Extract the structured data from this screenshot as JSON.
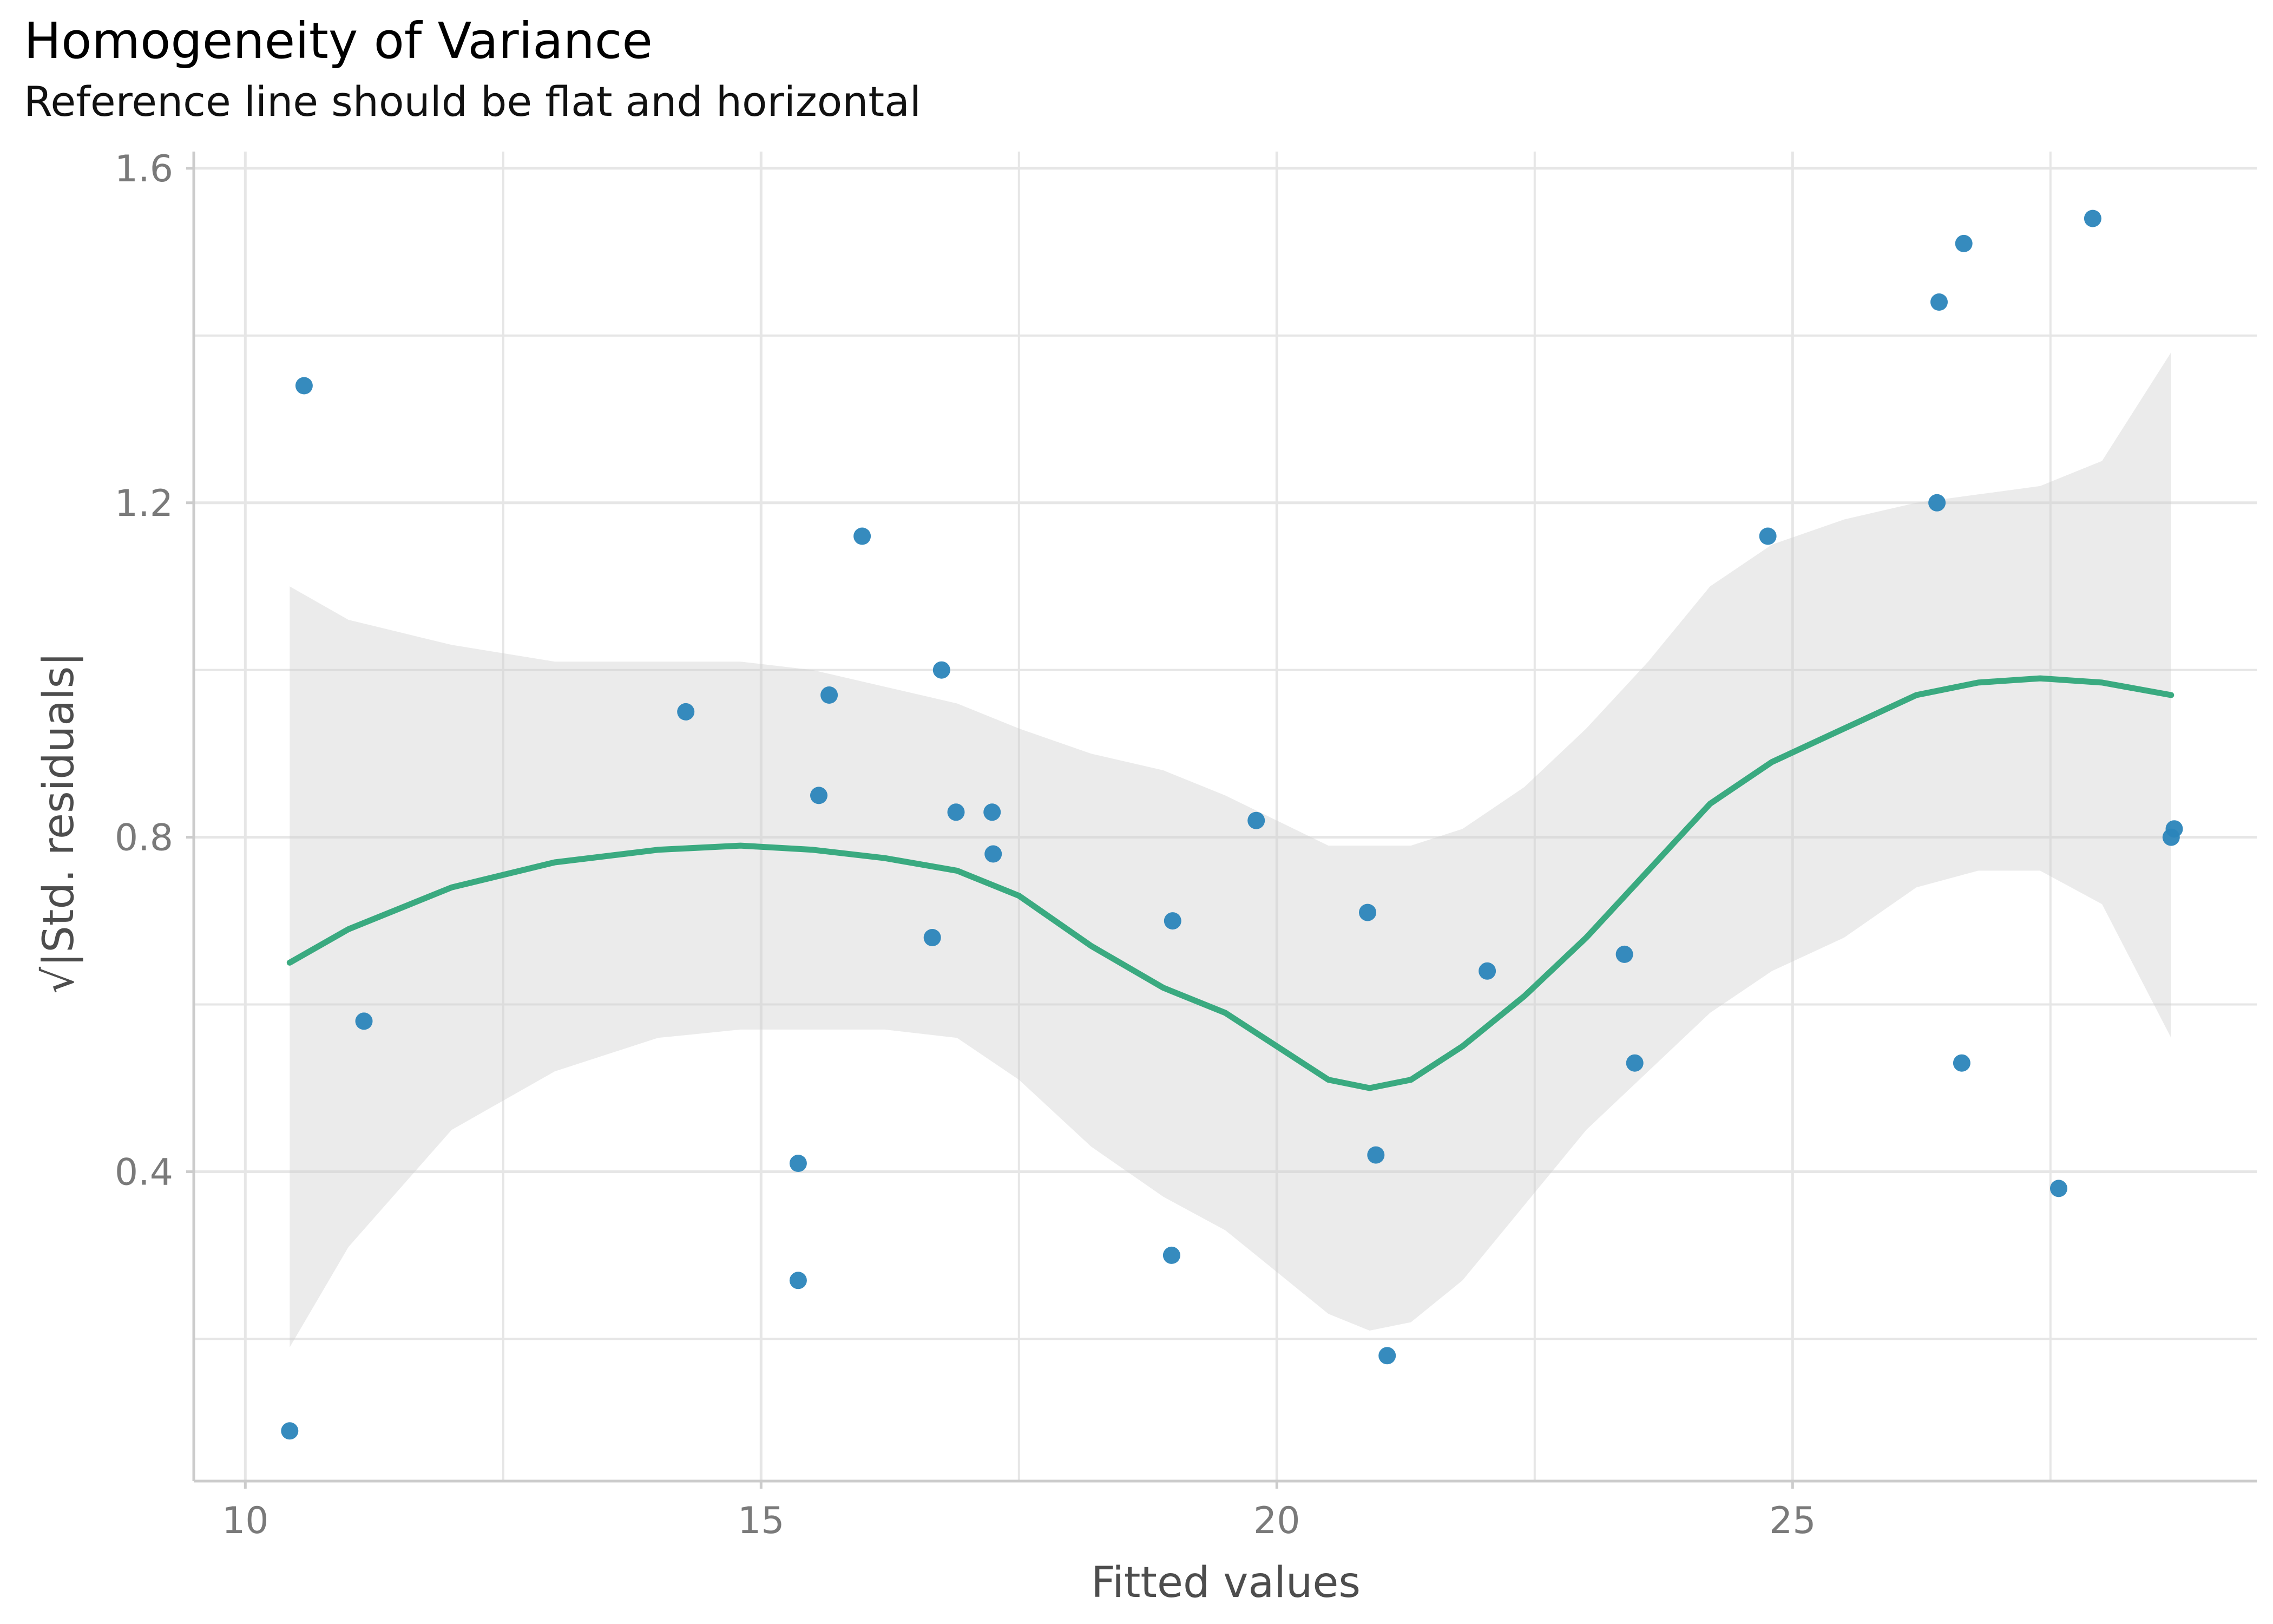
{
  "chart_data": {
    "type": "scatter",
    "title": "Homogeneity of Variance",
    "subtitle": "Reference line should be flat and horizontal",
    "xlabel": "Fitted values",
    "ylabel": "√|Std. residuals|",
    "xlim": [
      9.5,
      29.5
    ],
    "ylim": [
      0.03,
      1.62
    ],
    "x_ticks": [
      10,
      15,
      20,
      25
    ],
    "x_minor": [
      12.5,
      17.5,
      22.5,
      27.5
    ],
    "y_ticks": [
      0.4,
      0.8,
      1.2,
      1.6
    ],
    "y_tick_labels": [
      "0.4",
      "0.8",
      "1.2",
      "1.6"
    ],
    "y_minor": [
      0.2,
      0.6,
      1.0,
      1.4
    ],
    "grid": true,
    "colors": {
      "points": "#2b85ba",
      "smooth": "#3aaa80",
      "ribbon": "#e5e5e5",
      "grid": "#e6e6e6",
      "axis": "#cccccc"
    },
    "points": {
      "x": [
        10.43,
        10.57,
        11.15,
        14.27,
        15.36,
        15.36,
        15.56,
        15.66,
        15.98,
        16.66,
        16.75,
        16.89,
        17.24,
        17.25,
        18.98,
        18.99,
        19.8,
        20.88,
        20.96,
        21.07,
        22.04,
        23.37,
        23.47,
        24.76,
        26.4,
        26.42,
        26.64,
        26.66,
        27.58,
        27.91,
        28.67,
        28.7
      ],
      "y": [
        0.09,
        1.34,
        0.58,
        0.95,
        0.27,
        0.41,
        0.85,
        0.97,
        1.16,
        0.68,
        1.0,
        0.83,
        0.83,
        0.78,
        0.3,
        0.7,
        0.82,
        0.71,
        0.42,
        0.18,
        0.64,
        0.66,
        0.53,
        1.16,
        1.2,
        1.44,
        0.53,
        1.51,
        0.38,
        1.54,
        0.8,
        0.81
      ]
    },
    "smooth": {
      "x": [
        10.43,
        11.0,
        12.0,
        13.0,
        14.0,
        14.8,
        15.5,
        16.2,
        16.9,
        17.5,
        18.2,
        18.9,
        19.5,
        20.0,
        20.5,
        20.9,
        21.3,
        21.8,
        22.4,
        23.0,
        23.6,
        24.2,
        24.8,
        25.5,
        26.2,
        26.8,
        27.4,
        28.0,
        28.67
      ],
      "y": [
        0.65,
        0.69,
        0.74,
        0.77,
        0.785,
        0.79,
        0.785,
        0.775,
        0.76,
        0.73,
        0.67,
        0.62,
        0.59,
        0.55,
        0.51,
        0.5,
        0.51,
        0.55,
        0.61,
        0.68,
        0.76,
        0.84,
        0.89,
        0.93,
        0.97,
        0.985,
        0.99,
        0.985,
        0.97
      ]
    },
    "ribbon_upper": [
      1.1,
      1.06,
      1.03,
      1.01,
      1.01,
      1.01,
      1.0,
      0.98,
      0.96,
      0.93,
      0.9,
      0.88,
      0.85,
      0.82,
      0.79,
      0.79,
      0.79,
      0.81,
      0.86,
      0.93,
      1.01,
      1.1,
      1.15,
      1.18,
      1.2,
      1.21,
      1.22,
      1.25,
      1.38
    ],
    "ribbon_lower": [
      0.19,
      0.31,
      0.45,
      0.52,
      0.56,
      0.57,
      0.57,
      0.57,
      0.56,
      0.51,
      0.43,
      0.37,
      0.33,
      0.28,
      0.23,
      0.21,
      0.22,
      0.27,
      0.36,
      0.45,
      0.52,
      0.59,
      0.64,
      0.68,
      0.74,
      0.76,
      0.76,
      0.72,
      0.56
    ]
  }
}
